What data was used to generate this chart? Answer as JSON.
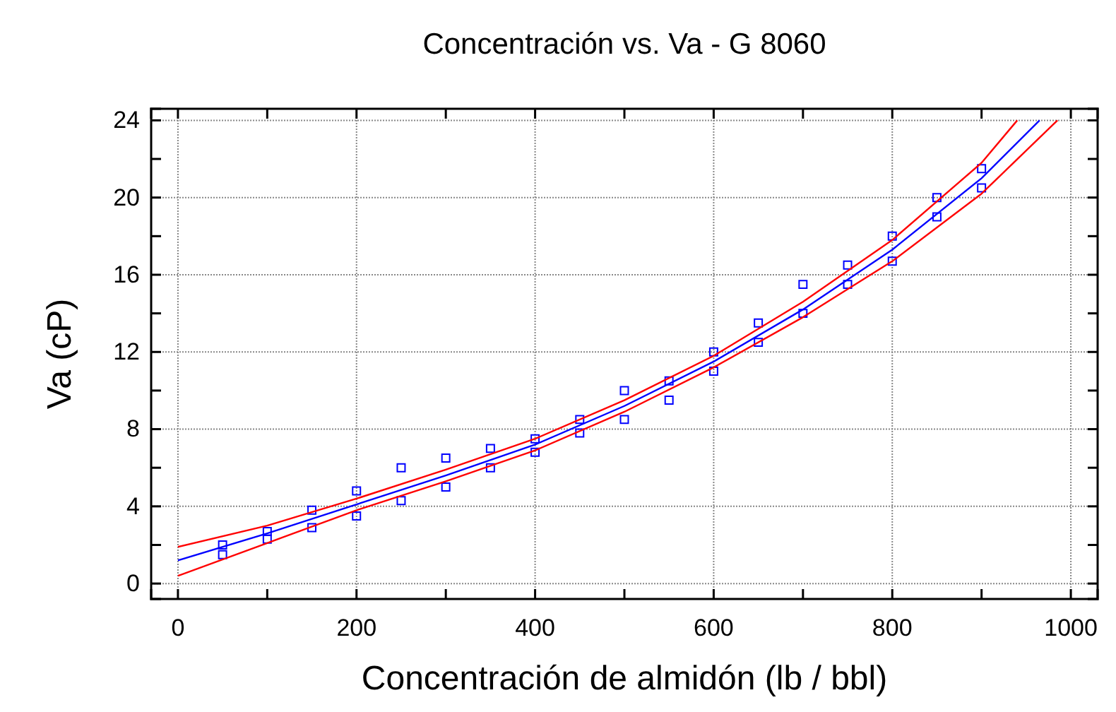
{
  "chart_data": {
    "type": "scatter",
    "title": "Concentración vs. Va - G 8060",
    "xlabel": "Concentración de almidón (lb / bbl)",
    "ylabel": "Va (cP)",
    "xlim": [
      -30,
      1030
    ],
    "ylim": [
      -0.8,
      24.6
    ],
    "xticks": [
      0,
      {
        "value": 100,
        "label": null
      },
      200,
      {
        "value": 300,
        "label": null
      },
      400,
      {
        "value": 500,
        "label": null
      },
      600,
      {
        "value": 700,
        "label": null
      },
      800,
      {
        "value": 900,
        "label": null
      },
      1000
    ],
    "yticks": [
      0,
      {
        "value": 2,
        "label": null
      },
      4,
      {
        "value": 6,
        "label": null
      },
      8,
      {
        "value": 10,
        "label": null
      },
      12,
      {
        "value": 14,
        "label": null
      },
      16,
      {
        "value": 18,
        "label": null
      },
      20,
      {
        "value": 22,
        "label": null
      },
      24
    ],
    "grid": true,
    "marker": "square",
    "series": [
      {
        "color": "#0000ff",
        "x": [
          50,
          50,
          100,
          100,
          150,
          150,
          200,
          200,
          250,
          250,
          300,
          300,
          350,
          350,
          400,
          400,
          450,
          450,
          500,
          500,
          550,
          550,
          600,
          600,
          650,
          650,
          700,
          700,
          750,
          750,
          800,
          800,
          850,
          850,
          900,
          900
        ],
        "values": [
          2.0,
          1.5,
          2.7,
          2.3,
          3.8,
          2.9,
          4.8,
          3.5,
          6.0,
          4.3,
          6.5,
          5.0,
          7.0,
          6.0,
          7.5,
          6.8,
          8.5,
          7.8,
          10.0,
          8.5,
          10.5,
          9.5,
          12.0,
          11.0,
          13.5,
          12.5,
          15.5,
          14.0,
          16.5,
          15.5,
          18.0,
          16.7,
          20.0,
          19.0,
          21.5,
          20.5
        ]
      },
      {
        "type": "line",
        "color": "#0000ff",
        "marker": "none",
        "x": [
          0,
          100,
          200,
          300,
          400,
          500,
          600,
          700,
          800,
          900,
          965
        ],
        "values": [
          1.2,
          2.6,
          4.1,
          5.6,
          7.2,
          9.2,
          11.5,
          14.2,
          17.3,
          21,
          24
        ]
      },
      {
        "type": "line",
        "color": "#ff0000",
        "marker": "none",
        "x": [
          0,
          100,
          200,
          300,
          400,
          500,
          600,
          700,
          800,
          900,
          940
        ],
        "values": [
          1.9,
          3.0,
          4.4,
          5.9,
          7.5,
          9.5,
          11.8,
          14.6,
          17.8,
          21.8,
          24
        ]
      },
      {
        "type": "line",
        "color": "#ff0000",
        "marker": "none",
        "x": [
          0,
          100,
          200,
          300,
          400,
          500,
          600,
          700,
          800,
          900,
          985
        ],
        "values": [
          0.4,
          2.1,
          3.8,
          5.3,
          6.9,
          8.9,
          11.2,
          13.8,
          16.7,
          20.2,
          24
        ]
      }
    ]
  }
}
